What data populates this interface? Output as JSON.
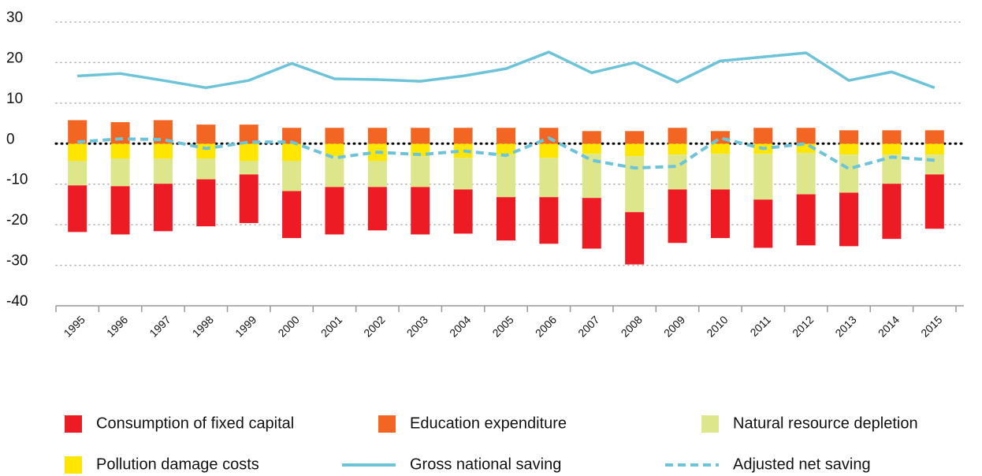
{
  "chart_data": {
    "type": "bar",
    "categories": [
      "1995",
      "1996",
      "1997",
      "1998",
      "1999",
      "2000",
      "2001",
      "2002",
      "2003",
      "2004",
      "2005",
      "2006",
      "2007",
      "2008",
      "2009",
      "2010",
      "2011",
      "2012",
      "2013",
      "2014",
      "2015"
    ],
    "series": [
      {
        "name": "Consumption of fixed capital",
        "type": "bar",
        "color": "#ed1c24",
        "values": [
          -11.5,
          -11.9,
          -11.7,
          -11.6,
          -12,
          -11.6,
          -11.7,
          -10.7,
          -11.7,
          -10.9,
          -10.7,
          -11.5,
          -12.5,
          -12.9,
          -13.2,
          -12,
          -11.9,
          -12.6,
          -13.2,
          -13.6,
          -13.4
        ]
      },
      {
        "name": "Education expenditure",
        "type": "bar",
        "color": "#f26522",
        "values": [
          5.8,
          5.3,
          5.8,
          4.7,
          4.7,
          3.9,
          3.9,
          3.9,
          3.9,
          3.9,
          3.9,
          3.9,
          3.1,
          3.1,
          3.9,
          3.1,
          3.9,
          3.9,
          3.3,
          3.3,
          3.3
        ]
      },
      {
        "name": "Natural resource depletion",
        "type": "bar",
        "color": "#dde68a",
        "values": [
          -6,
          -6.8,
          -6.2,
          -5.1,
          -3.3,
          -7.4,
          -7.6,
          -6.4,
          -7.6,
          -7.8,
          -10.5,
          -9.7,
          -10.9,
          -13.8,
          -8.6,
          -8.8,
          -11.3,
          -10.2,
          -9.4,
          -7.2,
          -4.9
        ]
      },
      {
        "name": "Pollution damage costs",
        "type": "bar",
        "color": "#ffe600",
        "values": [
          -4.3,
          -3.7,
          -3.7,
          -3.7,
          -4.3,
          -4.3,
          -3.1,
          -4.3,
          -3.1,
          -3.5,
          -2.7,
          -3.5,
          -2.5,
          -3.1,
          -2.7,
          -2.5,
          -2.5,
          -2.3,
          -2.7,
          -2.7,
          -2.7
        ]
      },
      {
        "name": "Gross national saving",
        "type": "line",
        "color": "#6dc3d8",
        "values": [
          16.7,
          17.3,
          15.6,
          13.8,
          15.6,
          19.8,
          16,
          15.8,
          15.4,
          16.7,
          18.5,
          22.6,
          17.5,
          20,
          15.2,
          20.4,
          21.4,
          22.4,
          15.6,
          17.7,
          13.8
        ]
      },
      {
        "name": "Adjusted net saving",
        "type": "line",
        "dashed": true,
        "color": "#6dc3d8",
        "values": [
          0.4,
          1.2,
          1,
          -1.2,
          0.4,
          0.4,
          -3.5,
          -2.1,
          -2.7,
          -1.8,
          -2.9,
          1.4,
          -4.1,
          -6,
          -5.6,
          1.4,
          -1.2,
          0,
          -6.2,
          -3.3,
          -4.1
        ]
      }
    ],
    "ylim": [
      -40,
      30
    ],
    "yticks": [
      30,
      20,
      10,
      0,
      -10,
      -20,
      -30,
      -40
    ],
    "grid": true
  }
}
